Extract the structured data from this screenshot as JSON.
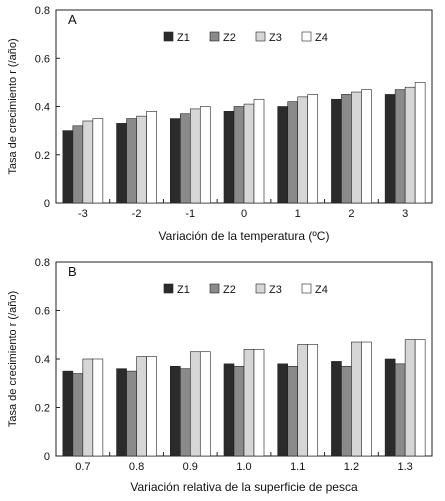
{
  "colors": {
    "Z1": "#2b2b2b",
    "Z2": "#8a8a8a",
    "Z3": "#d6d6d6",
    "Z4": "#ffffff",
    "axis": "#222222"
  },
  "chart_data": [
    {
      "type": "bar",
      "panel_label": "A",
      "xlabel": "Variación de la temperatura (ºC)",
      "ylabel": "Tasa de crecimiento r (/año)",
      "ylim": [
        0,
        0.8
      ],
      "yticks": [
        "0",
        "0.2",
        "0.4",
        "0.6",
        "0.8"
      ],
      "yticks_values": [
        0,
        0.2,
        0.4,
        0.6,
        0.8
      ],
      "categories": [
        "-3",
        "-2",
        "-1",
        "0",
        "1",
        "2",
        "3"
      ],
      "legend_position": "top-right",
      "grid": false,
      "series": [
        {
          "name": "Z1",
          "values": [
            0.3,
            0.33,
            0.35,
            0.38,
            0.4,
            0.43,
            0.45
          ]
        },
        {
          "name": "Z2",
          "values": [
            0.32,
            0.35,
            0.37,
            0.4,
            0.42,
            0.45,
            0.47
          ]
        },
        {
          "name": "Z3",
          "values": [
            0.34,
            0.36,
            0.39,
            0.41,
            0.44,
            0.46,
            0.48
          ]
        },
        {
          "name": "Z4",
          "values": [
            0.35,
            0.38,
            0.4,
            0.43,
            0.45,
            0.47,
            0.5
          ]
        }
      ]
    },
    {
      "type": "bar",
      "panel_label": "B",
      "xlabel": "Variación relativa de la superficie de pesca",
      "ylabel": "Tasa de crecimiento r (/año)",
      "ylim": [
        0,
        0.8
      ],
      "yticks": [
        "0",
        "0.2",
        "0.4",
        "0.6",
        "0.8"
      ],
      "yticks_values": [
        0,
        0.2,
        0.4,
        0.6,
        0.8
      ],
      "categories": [
        "0.7",
        "0.8",
        "0.9",
        "1.0",
        "1.1",
        "1.2",
        "1.3"
      ],
      "legend_position": "top-right",
      "grid": false,
      "series": [
        {
          "name": "Z1",
          "values": [
            0.35,
            0.36,
            0.37,
            0.38,
            0.38,
            0.39,
            0.4
          ]
        },
        {
          "name": "Z2",
          "values": [
            0.34,
            0.35,
            0.36,
            0.37,
            0.37,
            0.37,
            0.38
          ]
        },
        {
          "name": "Z3",
          "values": [
            0.4,
            0.41,
            0.43,
            0.44,
            0.46,
            0.47,
            0.48
          ]
        },
        {
          "name": "Z4",
          "values": [
            0.4,
            0.41,
            0.43,
            0.44,
            0.46,
            0.47,
            0.48
          ]
        }
      ]
    }
  ]
}
